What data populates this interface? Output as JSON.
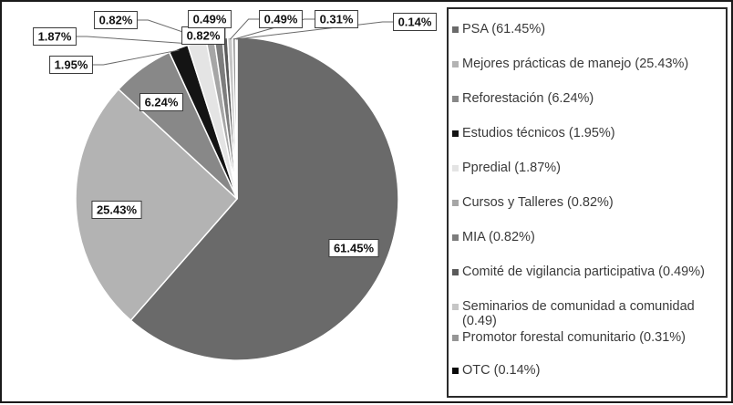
{
  "chart_data": {
    "type": "pie",
    "slices": [
      {
        "label": "PSA",
        "legend": "PSA (61.45%)",
        "value": 61.45,
        "data_label": "61.45%",
        "color": "#6a6a6a"
      },
      {
        "label": "Mejores prácticas de manejo",
        "legend": "Mejores prácticas de manejo (25.43%)",
        "value": 25.43,
        "data_label": "25.43%",
        "color": "#b3b3b3"
      },
      {
        "label": "Reforestación",
        "legend": "Reforestación (6.24%)",
        "value": 6.24,
        "data_label": "6.24%",
        "color": "#888888"
      },
      {
        "label": "Estudios técnicos",
        "legend": "Estudios técnicos (1.95%)",
        "value": 1.95,
        "data_label": "1.95%",
        "color": "#141414"
      },
      {
        "label": "Ppredial",
        "legend": "Ppredial (1.87%)",
        "value": 1.87,
        "data_label": "1.87%",
        "color": "#e4e4e4"
      },
      {
        "label": "Cursos y Talleres",
        "legend": "Cursos y Talleres (0.82%)",
        "value": 0.82,
        "data_label": "0.82%",
        "color": "#a6a6a6"
      },
      {
        "label": "MIA",
        "legend": "MIA (0.82%)",
        "value": 0.82,
        "data_label": "0.82%",
        "color": "#7d7d7d"
      },
      {
        "label": "Comité de vigilancia participativa",
        "legend": "Comité de vigilancia participativa (0.49%)",
        "value": 0.49,
        "data_label": "0.49%",
        "color": "#5a5a5a"
      },
      {
        "label": "Seminarios de comunidad a comunidad",
        "legend": "Seminarios de comunidad a comunidad (0.49)",
        "value": 0.49,
        "data_label": "0.49%",
        "color": "#c6c6c6"
      },
      {
        "label": "Promotor forestal comunitario",
        "legend": "Promotor forestal comunitario (0.31%)",
        "value": 0.31,
        "data_label": "0.31%",
        "color": "#969696"
      },
      {
        "label": "OTC",
        "legend": "OTC (0.14%)",
        "value": 0.14,
        "data_label": "0.14%",
        "color": "#0a0a0a"
      }
    ],
    "legend_position": "right",
    "start_position": "12 o'clock, clockwise"
  }
}
